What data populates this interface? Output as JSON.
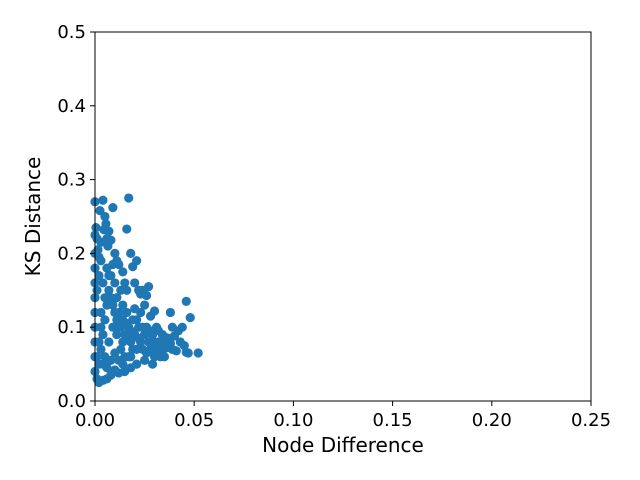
{
  "chart_data": {
    "type": "scatter",
    "title": "",
    "xlabel": "Node Difference",
    "ylabel": "KS Distance",
    "xlim": [
      0,
      0.25
    ],
    "ylim": [
      0,
      0.5
    ],
    "xticks": [
      "0.00",
      "0.05",
      "0.10",
      "0.15",
      "0.20",
      "0.25"
    ],
    "xtick_values": [
      0,
      0.05,
      0.1,
      0.15,
      0.2,
      0.25
    ],
    "yticks": [
      "0.0",
      "0.1",
      "0.2",
      "0.3",
      "0.4",
      "0.5"
    ],
    "ytick_values": [
      0,
      0.1,
      0.2,
      0.3,
      0.4,
      0.5
    ],
    "grid": false,
    "legend": "none",
    "marker_color": "#1f77b4",
    "points": [
      [
        0.0,
        0.27
      ],
      [
        0.0005,
        0.235
      ],
      [
        0.001,
        0.22
      ],
      [
        0.0015,
        0.205
      ],
      [
        0.002,
        0.195
      ],
      [
        0.0025,
        0.258
      ],
      [
        0.003,
        0.215
      ],
      [
        0.004,
        0.272
      ],
      [
        0.0045,
        0.232
      ],
      [
        0.005,
        0.25
      ],
      [
        0.0055,
        0.24
      ],
      [
        0.006,
        0.22
      ],
      [
        0.0065,
        0.21
      ],
      [
        0.007,
        0.23
      ],
      [
        0.008,
        0.218
      ],
      [
        0.009,
        0.262
      ],
      [
        0.01,
        0.2
      ],
      [
        0.011,
        0.19
      ],
      [
        0.012,
        0.185
      ],
      [
        0.014,
        0.175
      ],
      [
        0.015,
        0.16
      ],
      [
        0.016,
        0.15
      ],
      [
        0.016,
        0.233
      ],
      [
        0.017,
        0.275
      ],
      [
        0.018,
        0.2
      ],
      [
        0.019,
        0.182
      ],
      [
        0.02,
        0.16
      ],
      [
        0.021,
        0.19
      ],
      [
        0.022,
        0.15
      ],
      [
        0.023,
        0.145
      ],
      [
        0.024,
        0.15
      ],
      [
        0.025,
        0.13
      ],
      [
        0.026,
        0.143
      ],
      [
        0.027,
        0.155
      ],
      [
        0.028,
        0.115
      ],
      [
        0.03,
        0.122
      ],
      [
        0.031,
        0.1
      ],
      [
        0.032,
        0.095
      ],
      [
        0.034,
        0.09
      ],
      [
        0.035,
        0.087
      ],
      [
        0.036,
        0.08
      ],
      [
        0.038,
        0.12
      ],
      [
        0.039,
        0.1
      ],
      [
        0.04,
        0.088
      ],
      [
        0.041,
        0.068
      ],
      [
        0.042,
        0.095
      ],
      [
        0.043,
        0.08
      ],
      [
        0.044,
        0.1
      ],
      [
        0.045,
        0.075
      ],
      [
        0.046,
        0.135
      ],
      [
        0.046,
        0.066
      ],
      [
        0.047,
        0.065
      ],
      [
        0.048,
        0.113
      ],
      [
        0.052,
        0.065
      ],
      [
        0.033,
        0.06
      ],
      [
        0.029,
        0.05
      ],
      [
        0.025,
        0.055
      ],
      [
        0.021,
        0.05
      ],
      [
        0.018,
        0.045
      ],
      [
        0.015,
        0.04
      ],
      [
        0.012,
        0.038
      ],
      [
        0.01,
        0.042
      ],
      [
        0.008,
        0.035
      ],
      [
        0.006,
        0.03
      ],
      [
        0.004,
        0.028
      ],
      [
        0.002,
        0.025
      ],
      [
        0.001,
        0.03
      ],
      [
        0.0,
        0.04
      ],
      [
        0.0,
        0.06
      ],
      [
        0.0,
        0.08
      ],
      [
        0.0,
        0.1
      ],
      [
        0.0,
        0.12
      ],
      [
        0.0,
        0.14
      ],
      [
        0.0,
        0.16
      ],
      [
        0.0,
        0.18
      ],
      [
        0.0,
        0.2
      ],
      [
        0.0,
        0.225
      ],
      [
        0.002,
        0.05
      ],
      [
        0.003,
        0.07
      ],
      [
        0.004,
        0.09
      ],
      [
        0.005,
        0.11
      ],
      [
        0.006,
        0.13
      ],
      [
        0.007,
        0.15
      ],
      [
        0.008,
        0.17
      ],
      [
        0.009,
        0.185
      ],
      [
        0.01,
        0.16
      ],
      [
        0.011,
        0.14
      ],
      [
        0.012,
        0.12
      ],
      [
        0.013,
        0.1
      ],
      [
        0.014,
        0.08
      ],
      [
        0.015,
        0.06
      ],
      [
        0.016,
        0.12
      ],
      [
        0.017,
        0.1
      ],
      [
        0.018,
        0.08
      ],
      [
        0.019,
        0.07
      ],
      [
        0.02,
        0.09
      ],
      [
        0.021,
        0.11
      ],
      [
        0.022,
        0.1
      ],
      [
        0.023,
        0.08
      ],
      [
        0.024,
        0.07
      ],
      [
        0.025,
        0.09
      ],
      [
        0.026,
        0.1
      ],
      [
        0.027,
        0.08
      ],
      [
        0.028,
        0.07
      ],
      [
        0.029,
        0.09
      ],
      [
        0.03,
        0.08
      ],
      [
        0.031,
        0.07
      ],
      [
        0.032,
        0.08
      ],
      [
        0.033,
        0.075
      ],
      [
        0.034,
        0.07
      ],
      [
        0.035,
        0.06
      ],
      [
        0.036,
        0.072
      ],
      [
        0.037,
        0.085
      ],
      [
        0.038,
        0.078
      ],
      [
        0.039,
        0.07
      ],
      [
        0.005,
        0.06
      ],
      [
        0.007,
        0.08
      ],
      [
        0.009,
        0.1
      ],
      [
        0.011,
        0.09
      ],
      [
        0.013,
        0.07
      ],
      [
        0.015,
        0.09
      ],
      [
        0.017,
        0.06
      ],
      [
        0.019,
        0.11
      ],
      [
        0.021,
        0.07
      ],
      [
        0.023,
        0.12
      ],
      [
        0.003,
        0.12
      ],
      [
        0.005,
        0.14
      ],
      [
        0.007,
        0.17
      ],
      [
        0.009,
        0.13
      ],
      [
        0.011,
        0.11
      ],
      [
        0.013,
        0.15
      ],
      [
        0.014,
        0.13
      ],
      [
        0.016,
        0.105
      ],
      [
        0.018,
        0.095
      ],
      [
        0.02,
        0.125
      ],
      [
        0.022,
        0.085
      ],
      [
        0.024,
        0.1
      ],
      [
        0.026,
        0.065
      ],
      [
        0.028,
        0.095
      ],
      [
        0.03,
        0.06
      ],
      [
        0.001,
        0.15
      ],
      [
        0.002,
        0.17
      ],
      [
        0.003,
        0.19
      ],
      [
        0.004,
        0.16
      ],
      [
        0.006,
        0.18
      ],
      [
        0.008,
        0.14
      ],
      [
        0.01,
        0.12
      ],
      [
        0.012,
        0.1
      ],
      [
        0.014,
        0.11
      ],
      [
        0.016,
        0.085
      ],
      [
        0.001,
        0.06
      ],
      [
        0.002,
        0.08
      ],
      [
        0.003,
        0.1
      ],
      [
        0.004,
        0.05
      ],
      [
        0.006,
        0.045
      ],
      [
        0.008,
        0.055
      ],
      [
        0.01,
        0.065
      ],
      [
        0.012,
        0.055
      ],
      [
        0.014,
        0.05
      ],
      [
        0.018,
        0.06
      ]
    ]
  }
}
